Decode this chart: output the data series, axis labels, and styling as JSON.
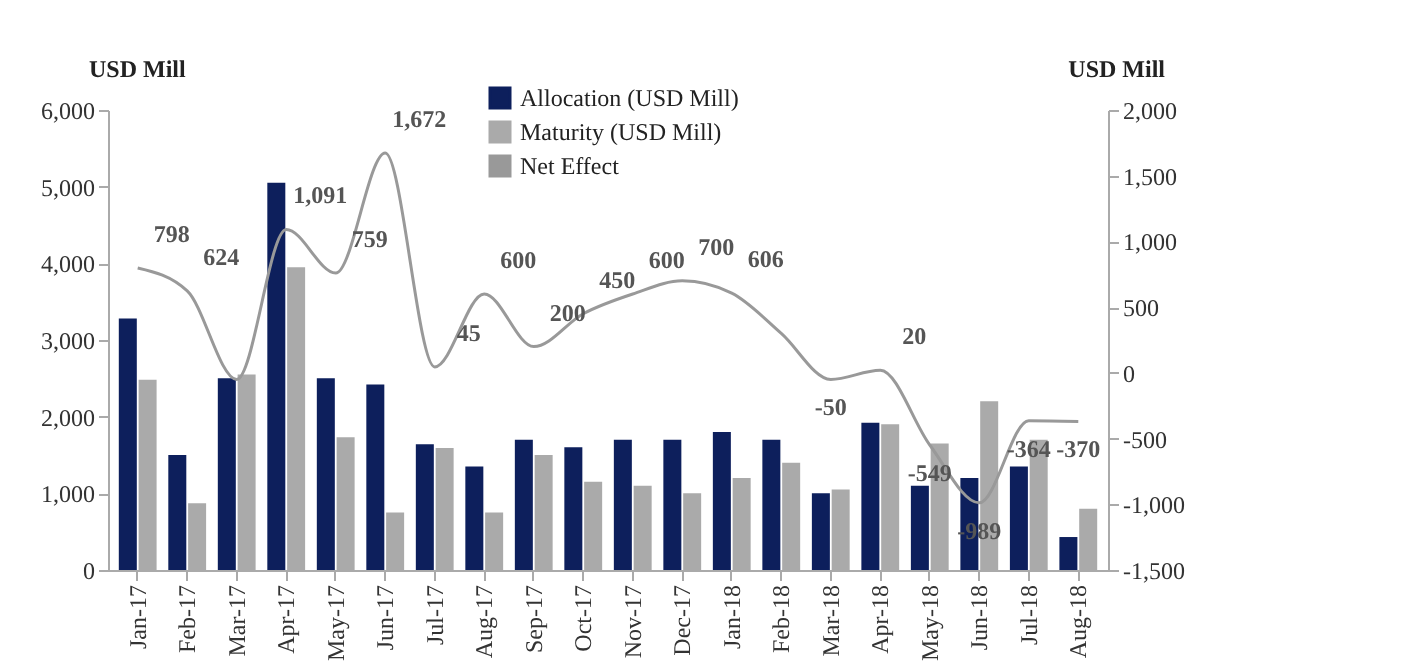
{
  "chart_data": {
    "type": "bar",
    "ylabel": "USD Mill",
    "y2label": "USD Mill",
    "categories": [
      "Jan-17",
      "Feb-17",
      "Mar-17",
      "Apr-17",
      "May-17",
      "Jun-17",
      "Jul-17",
      "Aug-17",
      "Sep-17",
      "Oct-17",
      "Nov-17",
      "Dec-17",
      "Jan-18",
      "Feb-18",
      "Mar-18",
      "Apr-18",
      "May-18",
      "Jun-18",
      "Jul-18",
      "Aug-18"
    ],
    "series": [
      {
        "name": "Allocation (USD Mill)",
        "color": "#0d1f5c",
        "values": [
          3280,
          1500,
          2500,
          5050,
          2500,
          2420,
          1640,
          1350,
          1700,
          1600,
          1700,
          1700,
          1800,
          1700,
          1000,
          1920,
          1100,
          1200,
          1350,
          430
        ]
      },
      {
        "name": "Maturity (USD Mill)",
        "color": "#aaaaaa",
        "values": [
          2480,
          870,
          2550,
          3950,
          1730,
          750,
          1590,
          750,
          1500,
          1150,
          1100,
          1000,
          1200,
          1400,
          1050,
          1900,
          1650,
          2200,
          1700,
          800
        ]
      },
      {
        "name": "Net Effect",
        "type": "line",
        "axis": "y2",
        "color": "#999999",
        "values": [
          798,
          624,
          -50,
          1091,
          759,
          1672,
          45,
          600,
          200,
          450,
          600,
          700,
          606,
          300,
          -50,
          20,
          -549,
          -989,
          -364,
          -370
        ],
        "value_labels": [
          "798",
          "624",
          null,
          "1,091",
          "759",
          "1,672",
          "45",
          "600",
          "200",
          "450",
          "600",
          "700",
          "606",
          null,
          "-50",
          "20",
          "-549",
          "-989",
          "-364",
          "-370"
        ]
      }
    ],
    "ylim": [
      0,
      6000
    ],
    "yticks": [
      0,
      {
        "value": 1000,
        "label": "1,000"
      },
      {
        "value": 2000,
        "label": "2,000"
      },
      {
        "value": 3000,
        "label": "3,000"
      },
      {
        "value": 4000,
        "label": "4,000"
      },
      {
        "value": 5000,
        "label": "5,000"
      },
      {
        "value": 6000,
        "label": "6,000"
      }
    ],
    "y2lim": [
      -1500,
      2000
    ],
    "y2ticks": [
      {
        "value": -1500,
        "label": "-1,500"
      },
      {
        "value": -1000,
        "label": "-1,000"
      },
      -500,
      0,
      500,
      {
        "value": 1000,
        "label": "1,000"
      },
      {
        "value": 1500,
        "label": "1,500"
      },
      {
        "value": 2000,
        "label": "2,000"
      }
    ],
    "grid": false,
    "legend": "top"
  }
}
